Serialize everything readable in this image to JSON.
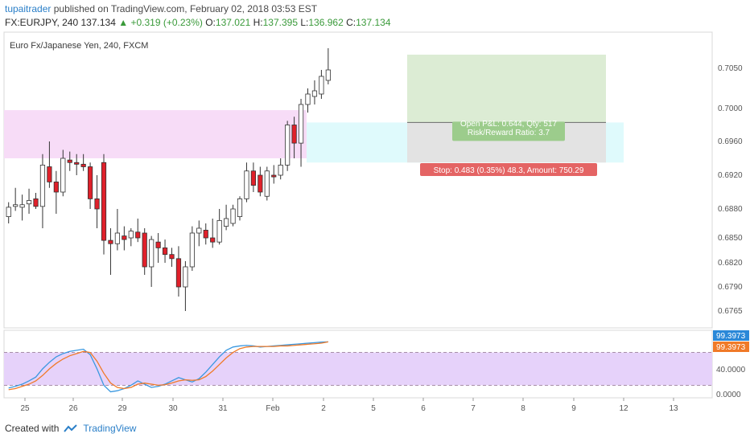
{
  "header": {
    "author": "tupaitrader",
    "published": "published on TradingView.com, February 02, 2018 03:53 EST",
    "symbol": "FX:EURJPY, 240",
    "last": "137.134",
    "change_arrow": "▲",
    "change": "+0.319 (+0.23%)",
    "o_label": "O:",
    "o": "137.021",
    "h_label": "H:",
    "h": "137.395",
    "l_label": "L:",
    "l": "136.962",
    "c_label": "C:",
    "c": "137.134"
  },
  "chart": {
    "legend": "Euro Fx/Japanese Yen, 240, FXCM",
    "price_ticks": [
      "0.7050",
      "0.7000",
      "0.6960",
      "0.6920",
      "0.6880",
      "0.6850",
      "0.6820",
      "0.6790",
      "0.6765"
    ],
    "x_ticks": [
      "25",
      "26",
      "29",
      "30",
      "31",
      "Feb",
      "2",
      "5",
      "6",
      "7",
      "8",
      "9",
      "12",
      "13"
    ],
    "position": {
      "pnl_text": "Open P&L: 0.644, Qty: 517",
      "rr_text": "Risk/Reward Ratio: 3.7",
      "stop_text": "Stop: 0.483 (0.35%) 48.3, Amount: 750.29"
    },
    "osc_ticks": [
      "40.0000",
      "0.0000"
    ],
    "osc_tag_blue": "99.3973",
    "osc_tag_orange": "99.3973",
    "colors": {
      "up": "#ffffff",
      "down": "#e0202a",
      "zone_pink": "#f7dcf7",
      "zone_cyan": "#dffafc",
      "target": "#dcecd4",
      "risk": "#e3e3e3",
      "stop_label": "#e46464",
      "osc_band": "#e6d2fa",
      "k_line": "#3a98e0",
      "d_line": "#f07a28"
    }
  },
  "chart_data": {
    "type": "candlestick",
    "y_range": [
      0.6745,
      0.7085
    ],
    "x_labels": [
      "25",
      "26",
      "29",
      "30",
      "31",
      "Feb",
      "2"
    ],
    "candles": [
      {
        "o": 0.6872,
        "h": 0.6888,
        "l": 0.6865,
        "c": 0.6882
      },
      {
        "o": 0.6883,
        "h": 0.6905,
        "l": 0.6878,
        "c": 0.6885
      },
      {
        "o": 0.6882,
        "h": 0.6897,
        "l": 0.6868,
        "c": 0.6885
      },
      {
        "o": 0.6886,
        "h": 0.6904,
        "l": 0.6875,
        "c": 0.689
      },
      {
        "o": 0.6892,
        "h": 0.6899,
        "l": 0.688,
        "c": 0.6883
      },
      {
        "o": 0.6883,
        "h": 0.6945,
        "l": 0.686,
        "c": 0.6932
      },
      {
        "o": 0.693,
        "h": 0.696,
        "l": 0.6905,
        "c": 0.6912
      },
      {
        "o": 0.6912,
        "h": 0.6925,
        "l": 0.6875,
        "c": 0.69
      },
      {
        "o": 0.69,
        "h": 0.695,
        "l": 0.6895,
        "c": 0.694
      },
      {
        "o": 0.6938,
        "h": 0.6948,
        "l": 0.6925,
        "c": 0.6935
      },
      {
        "o": 0.6935,
        "h": 0.6945,
        "l": 0.692,
        "c": 0.6933
      },
      {
        "o": 0.6933,
        "h": 0.6945,
        "l": 0.6925,
        "c": 0.693
      },
      {
        "o": 0.693,
        "h": 0.6935,
        "l": 0.688,
        "c": 0.6892
      },
      {
        "o": 0.6892,
        "h": 0.692,
        "l": 0.686,
        "c": 0.688
      },
      {
        "o": 0.6935,
        "h": 0.6945,
        "l": 0.683,
        "c": 0.6847
      },
      {
        "o": 0.6847,
        "h": 0.686,
        "l": 0.6805,
        "c": 0.6843
      },
      {
        "o": 0.6843,
        "h": 0.688,
        "l": 0.6835,
        "c": 0.6855
      },
      {
        "o": 0.6852,
        "h": 0.6862,
        "l": 0.6835,
        "c": 0.6848
      },
      {
        "o": 0.685,
        "h": 0.686,
        "l": 0.684,
        "c": 0.6857
      },
      {
        "o": 0.6856,
        "h": 0.687,
        "l": 0.6845,
        "c": 0.685
      },
      {
        "o": 0.6855,
        "h": 0.686,
        "l": 0.6805,
        "c": 0.6815
      },
      {
        "o": 0.6815,
        "h": 0.6852,
        "l": 0.679,
        "c": 0.6848
      },
      {
        "o": 0.6845,
        "h": 0.6855,
        "l": 0.682,
        "c": 0.6838
      },
      {
        "o": 0.6838,
        "h": 0.6848,
        "l": 0.682,
        "c": 0.683
      },
      {
        "o": 0.683,
        "h": 0.6838,
        "l": 0.6815,
        "c": 0.6825
      },
      {
        "o": 0.6825,
        "h": 0.684,
        "l": 0.678,
        "c": 0.679
      },
      {
        "o": 0.679,
        "h": 0.6822,
        "l": 0.6765,
        "c": 0.6815
      },
      {
        "o": 0.6815,
        "h": 0.6862,
        "l": 0.681,
        "c": 0.6855
      },
      {
        "o": 0.6855,
        "h": 0.6868,
        "l": 0.684,
        "c": 0.686
      },
      {
        "o": 0.6858,
        "h": 0.6865,
        "l": 0.6842,
        "c": 0.685
      },
      {
        "o": 0.685,
        "h": 0.687,
        "l": 0.6838,
        "c": 0.6845
      },
      {
        "o": 0.6845,
        "h": 0.688,
        "l": 0.6842,
        "c": 0.6868
      },
      {
        "o": 0.6862,
        "h": 0.6885,
        "l": 0.6858,
        "c": 0.687
      },
      {
        "o": 0.6865,
        "h": 0.6885,
        "l": 0.6862,
        "c": 0.688
      },
      {
        "o": 0.6872,
        "h": 0.6895,
        "l": 0.6868,
        "c": 0.6892
      },
      {
        "o": 0.6892,
        "h": 0.6935,
        "l": 0.6888,
        "c": 0.6925
      },
      {
        "o": 0.6925,
        "h": 0.6935,
        "l": 0.69,
        "c": 0.6908
      },
      {
        "o": 0.692,
        "h": 0.693,
        "l": 0.6895,
        "c": 0.69
      },
      {
        "o": 0.6895,
        "h": 0.693,
        "l": 0.689,
        "c": 0.6925
      },
      {
        "o": 0.692,
        "h": 0.6932,
        "l": 0.691,
        "c": 0.6918
      },
      {
        "o": 0.692,
        "h": 0.694,
        "l": 0.6915,
        "c": 0.6932
      },
      {
        "o": 0.6932,
        "h": 0.6985,
        "l": 0.6925,
        "c": 0.698
      },
      {
        "o": 0.698,
        "h": 0.699,
        "l": 0.694,
        "c": 0.6958
      },
      {
        "o": 0.6958,
        "h": 0.7012,
        "l": 0.693,
        "c": 0.7005
      },
      {
        "o": 0.7005,
        "h": 0.7025,
        "l": 0.6995,
        "c": 0.7018
      },
      {
        "o": 0.7015,
        "h": 0.7035,
        "l": 0.7005,
        "c": 0.7022
      },
      {
        "o": 0.7018,
        "h": 0.7048,
        "l": 0.7012,
        "c": 0.704
      },
      {
        "o": 0.7035,
        "h": 0.7075,
        "l": 0.703,
        "c": 0.7048
      }
    ],
    "zones": {
      "supply_zone": [
        0.694,
        0.6998
      ],
      "entry": 0.6983,
      "target": 0.7067,
      "stop": 0.6935
    },
    "oscillator": {
      "y_range": [
        0,
        100
      ],
      "band": [
        20,
        80
      ],
      "k": [
        15,
        18,
        22,
        28,
        35,
        50,
        62,
        72,
        78,
        82,
        84,
        86,
        76,
        50,
        20,
        8,
        10,
        14,
        20,
        28,
        22,
        16,
        18,
        22,
        28,
        34,
        30,
        26,
        32,
        44,
        58,
        72,
        84,
        90,
        92,
        93,
        92,
        90,
        91,
        92,
        93,
        94,
        95,
        96,
        97,
        98,
        99,
        99.4
      ],
      "d": [
        12,
        14,
        18,
        22,
        28,
        38,
        50,
        60,
        68,
        74,
        78,
        82,
        80,
        64,
        42,
        24,
        16,
        14,
        16,
        22,
        24,
        22,
        20,
        21,
        24,
        28,
        30,
        29,
        30,
        36,
        46,
        58,
        70,
        80,
        87,
        90,
        91,
        91,
        91,
        91,
        92,
        92,
        93,
        94,
        95,
        96,
        97,
        99.4
      ]
    }
  }
}
